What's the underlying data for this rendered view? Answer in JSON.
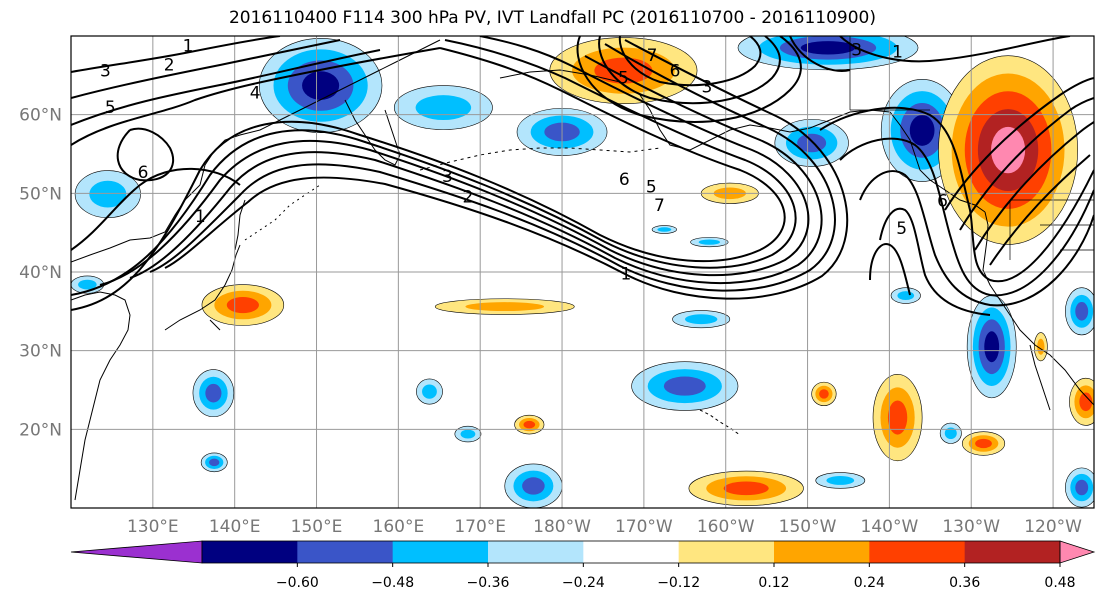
{
  "title": "2016110400 F114 300 hPa PV, IVT Landfall PC (2016110700 - 2016110900)",
  "map": {
    "lon_range": [
      120,
      245
    ],
    "lat_range": [
      10,
      70
    ],
    "lon_ticks": [
      {
        "lon": 130,
        "label": "130°E"
      },
      {
        "lon": 140,
        "label": "140°E"
      },
      {
        "lon": 150,
        "label": "150°E"
      },
      {
        "lon": 160,
        "label": "160°E"
      },
      {
        "lon": 170,
        "label": "170°E"
      },
      {
        "lon": 180,
        "label": "180°W"
      },
      {
        "lon": 190,
        "label": "170°W"
      },
      {
        "lon": 200,
        "label": "160°W"
      },
      {
        "lon": 210,
        "label": "150°W"
      },
      {
        "lon": 220,
        "label": "140°W"
      },
      {
        "lon": 230,
        "label": "130°W"
      },
      {
        "lon": 240,
        "label": "120°W"
      }
    ],
    "lat_ticks": [
      {
        "lat": 60,
        "label": "60°N"
      },
      {
        "lat": 50,
        "label": "50°N"
      },
      {
        "lat": 40,
        "label": "40°N"
      },
      {
        "lat": 30,
        "label": "30°N"
      },
      {
        "lat": 20,
        "label": "20°N"
      }
    ],
    "grid": true
  },
  "colorbar": {
    "colors": [
      "#9b30d0",
      "#000080",
      "#3a55c8",
      "#00bfff",
      "#b3e5fc",
      "#ffffff",
      "#ffe680",
      "#ffa500",
      "#ff4000",
      "#b22222",
      "#ff88b0"
    ],
    "tick_labels": [
      "−0.60",
      "−0.48",
      "−0.36",
      "−0.24",
      "−0.12",
      "0.12",
      "0.24",
      "0.36",
      "0.48",
      "0.60"
    ],
    "extend": "both"
  },
  "contour_labels": [
    {
      "text": "1",
      "lon": 134.3,
      "lat": 68.8
    },
    {
      "text": "2",
      "lon": 132.0,
      "lat": 66.4
    },
    {
      "text": "3",
      "lon": 124.2,
      "lat": 65.6
    },
    {
      "text": "4",
      "lon": 142.5,
      "lat": 62.8
    },
    {
      "text": "5",
      "lon": 124.8,
      "lat": 61.0
    },
    {
      "text": "6",
      "lon": 128.8,
      "lat": 52.7
    },
    {
      "text": "1",
      "lon": 135.8,
      "lat": 47.1
    },
    {
      "text": "3",
      "lon": 166.0,
      "lat": 52.2
    },
    {
      "text": "2",
      "lon": 168.5,
      "lat": 49.6
    },
    {
      "text": "6",
      "lon": 187.6,
      "lat": 51.8
    },
    {
      "text": "5",
      "lon": 190.9,
      "lat": 50.9
    },
    {
      "text": "7",
      "lon": 191.9,
      "lat": 48.5
    },
    {
      "text": "1",
      "lon": 187.8,
      "lat": 39.8
    },
    {
      "text": "7",
      "lon": 191.0,
      "lat": 67.6
    },
    {
      "text": "6",
      "lon": 193.8,
      "lat": 65.6
    },
    {
      "text": "5",
      "lon": 187.5,
      "lat": 64.7
    },
    {
      "text": "3",
      "lon": 197.7,
      "lat": 63.6
    },
    {
      "text": "3",
      "lon": 216.0,
      "lat": 68.3
    },
    {
      "text": "5",
      "lon": 221.5,
      "lat": 45.6
    },
    {
      "text": "6",
      "lon": 226.5,
      "lat": 49.1
    },
    {
      "text": "1",
      "lon": 221.0,
      "lat": 68.0
    }
  ],
  "shaded_regions": [
    {
      "lon": 137.4,
      "lat": 24.6,
      "rx": 2.5,
      "ry": 3.0,
      "levels": [
        "#b3e5fc",
        "#00bfff",
        "#3a55c8"
      ]
    },
    {
      "lon": 137.5,
      "lat": 15.8,
      "rx": 1.6,
      "ry": 1.2,
      "levels": [
        "#b3e5fc",
        "#00bfff",
        "#3a55c8"
      ]
    },
    {
      "lon": 124.5,
      "lat": 49.9,
      "rx": 4.0,
      "ry": 3.0,
      "levels": [
        "#b3e5fc",
        "#00bfff"
      ]
    },
    {
      "lon": 122.0,
      "lat": 38.4,
      "rx": 2.0,
      "ry": 1.1,
      "levels": [
        "#b3e5fc",
        "#00bfff"
      ]
    },
    {
      "lon": 150.5,
      "lat": 63.7,
      "rx": 7.5,
      "ry": 6.0,
      "levels": [
        "#b3e5fc",
        "#00bfff",
        "#3a55c8",
        "#000080"
      ]
    },
    {
      "lon": 165.5,
      "lat": 60.9,
      "rx": 6.0,
      "ry": 2.8,
      "levels": [
        "#b3e5fc",
        "#00bfff"
      ]
    },
    {
      "lon": 180.0,
      "lat": 57.8,
      "rx": 5.5,
      "ry": 3.0,
      "levels": [
        "#b3e5fc",
        "#00bfff",
        "#3a55c8"
      ]
    },
    {
      "lon": 212.5,
      "lat": 68.5,
      "rx": 11.0,
      "ry": 2.8,
      "levels": [
        "#b3e5fc",
        "#00bfff",
        "#3a55c8",
        "#000080"
      ]
    },
    {
      "lon": 210.5,
      "lat": 56.4,
      "rx": 4.5,
      "ry": 3.0,
      "levels": [
        "#b3e5fc",
        "#00bfff",
        "#3a55c8"
      ]
    },
    {
      "lon": 224.0,
      "lat": 58.0,
      "rx": 5.0,
      "ry": 6.5,
      "levels": [
        "#b3e5fc",
        "#00bfff",
        "#3a55c8",
        "#000080"
      ]
    },
    {
      "lon": 195.0,
      "lat": 25.5,
      "rx": 6.5,
      "ry": 3.1,
      "levels": [
        "#b3e5fc",
        "#00bfff",
        "#3a55c8"
      ]
    },
    {
      "lon": 197.0,
      "lat": 34.0,
      "rx": 3.5,
      "ry": 1.1,
      "levels": [
        "#b3e5fc",
        "#00bfff"
      ]
    },
    {
      "lon": 176.5,
      "lat": 12.8,
      "rx": 3.5,
      "ry": 2.8,
      "levels": [
        "#b3e5fc",
        "#00bfff",
        "#3a55c8"
      ]
    },
    {
      "lon": 163.8,
      "lat": 24.8,
      "rx": 1.6,
      "ry": 1.6,
      "levels": [
        "#b3e5fc",
        "#00bfff"
      ]
    },
    {
      "lon": 168.5,
      "lat": 19.4,
      "rx": 1.6,
      "ry": 1.0,
      "levels": [
        "#b3e5fc",
        "#00bfff"
      ]
    },
    {
      "lon": 232.5,
      "lat": 30.5,
      "rx": 3.0,
      "ry": 6.5,
      "levels": [
        "#b3e5fc",
        "#00bfff",
        "#3a55c8",
        "#000080"
      ]
    },
    {
      "lon": 243.5,
      "lat": 35.0,
      "rx": 2.0,
      "ry": 3.0,
      "levels": [
        "#b3e5fc",
        "#00bfff",
        "#3a55c8"
      ]
    },
    {
      "lon": 243.5,
      "lat": 12.6,
      "rx": 2.0,
      "ry": 2.5,
      "levels": [
        "#b3e5fc",
        "#00bfff",
        "#3a55c8"
      ]
    },
    {
      "lon": 214.0,
      "lat": 13.5,
      "rx": 3.0,
      "ry": 1.0,
      "levels": [
        "#b3e5fc",
        "#00bfff"
      ]
    },
    {
      "lon": 227.5,
      "lat": 19.5,
      "rx": 1.3,
      "ry": 1.3,
      "levels": [
        "#b3e5fc",
        "#00bfff"
      ]
    },
    {
      "lon": 222.0,
      "lat": 37.0,
      "rx": 1.8,
      "ry": 1.0,
      "levels": [
        "#b3e5fc",
        "#00bfff"
      ]
    },
    {
      "lon": 198.0,
      "lat": 43.8,
      "rx": 2.3,
      "ry": 0.6,
      "levels": [
        "#b3e5fc",
        "#00bfff"
      ]
    },
    {
      "lon": 192.5,
      "lat": 45.4,
      "rx": 1.5,
      "ry": 0.5,
      "levels": [
        "#b3e5fc",
        "#00bfff"
      ]
    },
    {
      "lon": 187.5,
      "lat": 65.6,
      "rx": 9.0,
      "ry": 4.2,
      "levels": [
        "#ffe680",
        "#ffa500",
        "#ff4000"
      ]
    },
    {
      "lon": 234.5,
      "lat": 55.5,
      "rx": 8.5,
      "ry": 12.0,
      "levels": [
        "#ffe680",
        "#ffa500",
        "#ff4000",
        "#b22222",
        "#ff88b0"
      ]
    },
    {
      "lon": 141.0,
      "lat": 35.8,
      "rx": 5.0,
      "ry": 2.6,
      "levels": [
        "#ffe680",
        "#ffa500",
        "#ff4000"
      ]
    },
    {
      "lon": 173.0,
      "lat": 35.6,
      "rx": 8.5,
      "ry": 1.0,
      "levels": [
        "#ffe680",
        "#ffa500"
      ]
    },
    {
      "lon": 200.5,
      "lat": 50.0,
      "rx": 3.5,
      "ry": 1.3,
      "levels": [
        "#ffe680",
        "#ffa500"
      ]
    },
    {
      "lon": 202.5,
      "lat": 12.5,
      "rx": 7.0,
      "ry": 2.2,
      "levels": [
        "#ffe680",
        "#ffa500",
        "#ff4000"
      ]
    },
    {
      "lon": 221.0,
      "lat": 21.5,
      "rx": 3.0,
      "ry": 5.5,
      "levels": [
        "#ffe680",
        "#ffa500",
        "#ff4000"
      ]
    },
    {
      "lon": 212.0,
      "lat": 24.5,
      "rx": 1.5,
      "ry": 1.5,
      "levels": [
        "#ffe680",
        "#ffa500",
        "#ff4000"
      ]
    },
    {
      "lon": 231.5,
      "lat": 18.2,
      "rx": 2.6,
      "ry": 1.5,
      "levels": [
        "#ffe680",
        "#ffa500",
        "#ff4000"
      ]
    },
    {
      "lon": 244.0,
      "lat": 23.5,
      "rx": 2.0,
      "ry": 3.0,
      "levels": [
        "#ffe680",
        "#ffa500",
        "#ff4000"
      ]
    },
    {
      "lon": 176.0,
      "lat": 20.6,
      "rx": 1.8,
      "ry": 1.2,
      "levels": [
        "#ffe680",
        "#ffa500",
        "#ff4000"
      ]
    },
    {
      "lon": 238.5,
      "lat": 30.5,
      "rx": 0.8,
      "ry": 1.8,
      "levels": [
        "#ffe680",
        "#ffa500"
      ]
    }
  ]
}
